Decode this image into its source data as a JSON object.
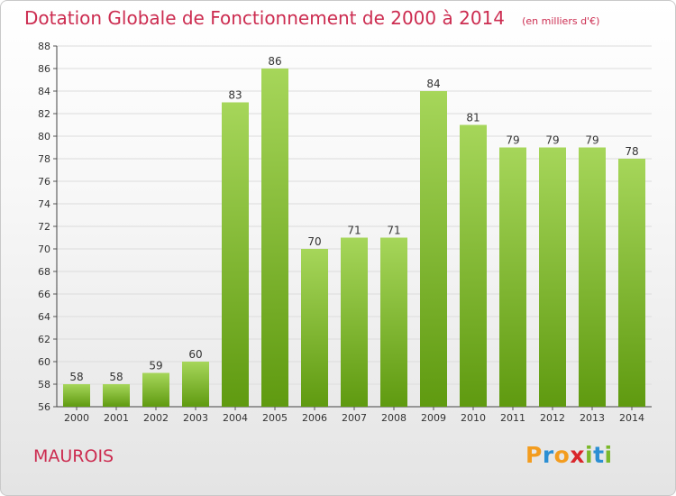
{
  "title": "Dotation Globale de Fonctionnement de 2000 à 2014",
  "unit": "(en milliers d'€)",
  "commune": "MAUROIS",
  "logo": {
    "letters": [
      "P",
      "r",
      "o",
      "x",
      "i",
      "t",
      "i"
    ],
    "colors": [
      "#f39c1e",
      "#2c8fd3",
      "#f39c1e",
      "#d9262b",
      "#7bb82a",
      "#2c8fd3",
      "#7bb82a"
    ]
  },
  "colors": {
    "bar_light": "#a6d65a",
    "bar_dark": "#5f9a10",
    "title": "#cc2c50"
  },
  "chart_data": {
    "type": "bar",
    "title": "Dotation Globale de Fonctionnement de 2000 à 2014",
    "subtitle": "(en milliers d'€)",
    "categories": [
      "2000",
      "2001",
      "2002",
      "2003",
      "2004",
      "2005",
      "2006",
      "2007",
      "2008",
      "2009",
      "2010",
      "2011",
      "2012",
      "2013",
      "2014"
    ],
    "values": [
      58,
      58,
      59,
      60,
      83,
      86,
      70,
      71,
      71,
      84,
      81,
      79,
      79,
      79,
      78
    ],
    "ylim": [
      56,
      88
    ],
    "yticks": [
      56,
      58,
      60,
      62,
      64,
      66,
      68,
      70,
      72,
      74,
      76,
      78,
      80,
      82,
      84,
      86,
      88
    ],
    "grid": true,
    "data_labels": true
  }
}
